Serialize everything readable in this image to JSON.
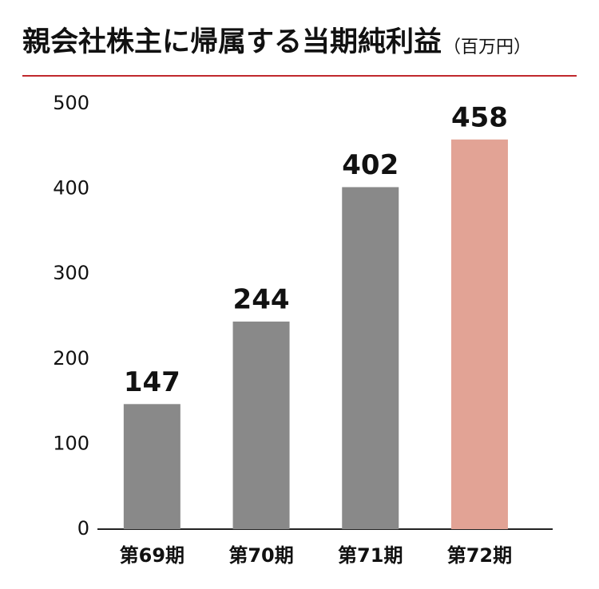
{
  "chart_data": {
    "type": "bar",
    "title": "親会社株主に帰属する当期純利益",
    "subtitle": "（百万円）",
    "categories": [
      "第69期",
      "第70期",
      "第71期",
      "第72期"
    ],
    "values": [
      147,
      244,
      402,
      458
    ],
    "colors": [
      "#898989",
      "#898989",
      "#898989",
      "#e2a395"
    ],
    "ylim": [
      0,
      500
    ],
    "yticks": [
      0,
      100,
      200,
      300,
      400,
      500
    ],
    "grid": false
  }
}
